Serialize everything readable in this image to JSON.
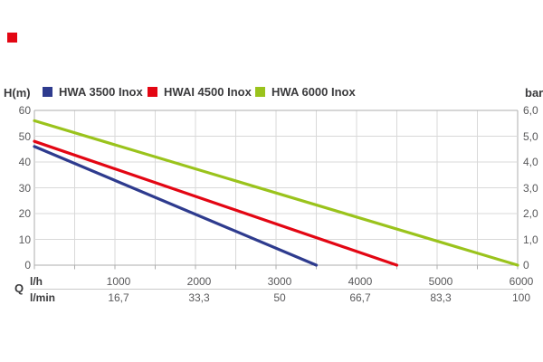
{
  "logo": {
    "color": "#e30613"
  },
  "header": {
    "left_axis_unit": "H(m)",
    "right_axis_unit": "bar"
  },
  "legend": [
    {
      "label": "HWA 3500 Inox",
      "color": "#2e3b8e"
    },
    {
      "label": "HWAI 4500 Inox",
      "color": "#e30613"
    },
    {
      "label": "HWA 6000 Inox",
      "color": "#9ac31c"
    }
  ],
  "footer": {
    "q_label": "Q",
    "row1_unit": "l/h",
    "row2_unit": "l/min"
  },
  "chart_data": {
    "type": "line",
    "title": "",
    "xlabel": "Q (l/h | l/min)",
    "ylabel_left": "H(m)",
    "ylabel_right": "bar",
    "x_range_lh": [
      0,
      6000
    ],
    "y_range_m": [
      0,
      60
    ],
    "y_range_bar": [
      0,
      6.0
    ],
    "grid": true,
    "x_gridline_step_lh": 500,
    "y_gridline_step_m": 10,
    "legend_position": "top",
    "series": [
      {
        "name": "HWA 3500 Inox",
        "color": "#2e3b8e",
        "points_lh_m": [
          [
            0,
            46
          ],
          [
            3500,
            0
          ]
        ]
      },
      {
        "name": "HWAI 4500 Inox",
        "color": "#e30613",
        "points_lh_m": [
          [
            0,
            48
          ],
          [
            4500,
            0
          ]
        ]
      },
      {
        "name": "HWA 6000 Inox",
        "color": "#9ac31c",
        "points_lh_m": [
          [
            0,
            56
          ],
          [
            6000,
            0
          ]
        ]
      }
    ],
    "left_tick_labels": [
      "60",
      "50",
      "40",
      "30",
      "20",
      "10",
      "0"
    ],
    "right_tick_labels": [
      "6,0",
      "5,0",
      "4,0",
      "3,0",
      "2,0",
      "1,0",
      "0"
    ],
    "bottom_lh_labels": [
      "1000",
      "2000",
      "3000",
      "4000",
      "5000",
      "6000"
    ],
    "bottom_lmin_labels": [
      "16,7",
      "33,3",
      "50",
      "66,7",
      "83,3",
      "100"
    ],
    "grid_color": "#d9d9d9",
    "axis_color": "#aeaeae"
  }
}
